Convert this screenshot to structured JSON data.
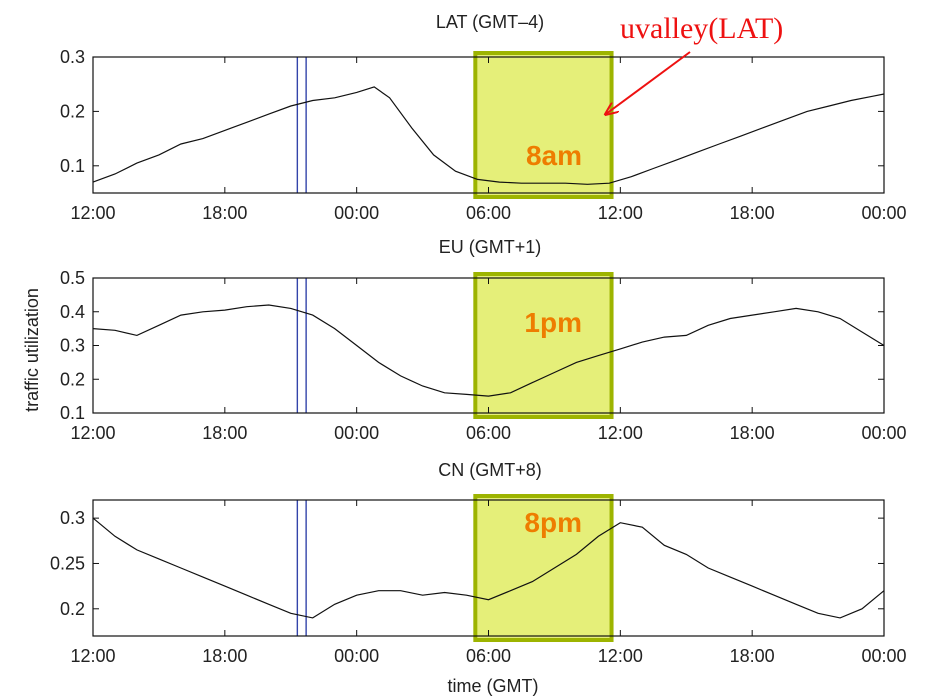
{
  "chart_data": [
    {
      "type": "line",
      "title": "LAT (GMT–4)",
      "xlabel": "",
      "ylabel": "",
      "x_tick_labels": [
        "12:00",
        "18:00",
        "00:00",
        "06:00",
        "12:00",
        "18:00",
        "00:00"
      ],
      "x_hours": [
        0,
        6,
        12,
        18,
        24,
        30,
        36
      ],
      "ylim": [
        0.05,
        0.3
      ],
      "y_ticks": [
        0.1,
        0.2,
        0.3
      ],
      "y_tick_labels": [
        "0.1",
        "0.2",
        "0.3"
      ],
      "vlines_hours": [
        9.3,
        9.7
      ],
      "highlight": {
        "from_hours": 17.4,
        "to_hours": 23.6,
        "label": "8am"
      },
      "annotation": "uvalley(LAT)",
      "series": [
        {
          "x_hours": [
            0,
            1,
            2,
            3,
            4,
            5,
            6,
            7,
            8,
            9,
            10,
            11,
            12,
            12.8,
            13.5,
            14.5,
            15.5,
            16.5,
            17.5,
            18.5,
            19.5,
            20.5,
            21.5,
            22.5,
            23.5,
            24.5,
            25.5,
            26.5,
            27.5,
            28.5,
            29.5,
            30.5,
            31.5,
            32.5,
            33.5,
            34.5,
            35.5,
            36
          ],
          "values": [
            0.07,
            0.085,
            0.105,
            0.12,
            0.14,
            0.15,
            0.165,
            0.18,
            0.195,
            0.21,
            0.22,
            0.225,
            0.235,
            0.245,
            0.225,
            0.17,
            0.12,
            0.09,
            0.075,
            0.07,
            0.068,
            0.068,
            0.068,
            0.066,
            0.068,
            0.08,
            0.095,
            0.11,
            0.125,
            0.14,
            0.155,
            0.17,
            0.185,
            0.2,
            0.21,
            0.22,
            0.228,
            0.232
          ]
        }
      ]
    },
    {
      "type": "line",
      "title": "EU (GMT+1)",
      "xlabel": "",
      "ylabel": "traffic utilization",
      "x_tick_labels": [
        "12:00",
        "18:00",
        "00:00",
        "06:00",
        "12:00",
        "18:00",
        "00:00"
      ],
      "x_hours": [
        0,
        6,
        12,
        18,
        24,
        30,
        36
      ],
      "ylim": [
        0.1,
        0.5
      ],
      "y_ticks": [
        0.1,
        0.2,
        0.3,
        0.4,
        0.5
      ],
      "y_tick_labels": [
        "0.1",
        "0.2",
        "0.3",
        "0.4",
        "0.5"
      ],
      "vlines_hours": [
        9.3,
        9.7
      ],
      "highlight": {
        "from_hours": 17.4,
        "to_hours": 23.6,
        "label": "1pm"
      },
      "series": [
        {
          "x_hours": [
            0,
            1,
            2,
            3,
            4,
            5,
            6,
            7,
            8,
            9,
            10,
            11,
            12,
            13,
            14,
            15,
            16,
            17,
            18,
            19,
            20,
            21,
            22,
            23,
            24,
            25,
            26,
            27,
            28,
            29,
            30,
            31,
            32,
            33,
            34,
            35,
            36
          ],
          "values": [
            0.35,
            0.345,
            0.33,
            0.36,
            0.39,
            0.4,
            0.405,
            0.415,
            0.42,
            0.41,
            0.39,
            0.35,
            0.3,
            0.25,
            0.21,
            0.18,
            0.16,
            0.155,
            0.15,
            0.16,
            0.19,
            0.22,
            0.25,
            0.27,
            0.29,
            0.31,
            0.325,
            0.33,
            0.36,
            0.38,
            0.39,
            0.4,
            0.41,
            0.4,
            0.38,
            0.34,
            0.3
          ]
        }
      ]
    },
    {
      "type": "line",
      "title": "CN (GMT+8)",
      "xlabel": "time (GMT)",
      "ylabel": "",
      "x_tick_labels": [
        "12:00",
        "18:00",
        "00:00",
        "06:00",
        "12:00",
        "18:00",
        "00:00"
      ],
      "x_hours": [
        0,
        6,
        12,
        18,
        24,
        30,
        36
      ],
      "ylim": [
        0.17,
        0.32
      ],
      "y_ticks": [
        0.2,
        0.25,
        0.3
      ],
      "y_tick_labels": [
        "0.2",
        "0.25",
        "0.3"
      ],
      "vlines_hours": [
        9.3,
        9.7
      ],
      "highlight": {
        "from_hours": 17.4,
        "to_hours": 23.6,
        "label": "8pm"
      },
      "series": [
        {
          "x_hours": [
            0,
            1,
            2,
            3,
            4,
            5,
            6,
            7,
            8,
            9,
            10,
            11,
            12,
            13,
            14,
            15,
            16,
            17,
            18,
            19,
            20,
            21,
            22,
            23,
            24,
            25,
            26,
            27,
            28,
            29,
            30,
            31,
            32,
            33,
            34,
            35,
            36
          ],
          "values": [
            0.3,
            0.28,
            0.265,
            0.255,
            0.245,
            0.235,
            0.225,
            0.215,
            0.205,
            0.195,
            0.19,
            0.205,
            0.215,
            0.22,
            0.22,
            0.215,
            0.218,
            0.215,
            0.21,
            0.22,
            0.23,
            0.245,
            0.26,
            0.28,
            0.295,
            0.29,
            0.27,
            0.26,
            0.245,
            0.235,
            0.225,
            0.215,
            0.205,
            0.195,
            0.19,
            0.2,
            0.22
          ]
        }
      ]
    }
  ]
}
